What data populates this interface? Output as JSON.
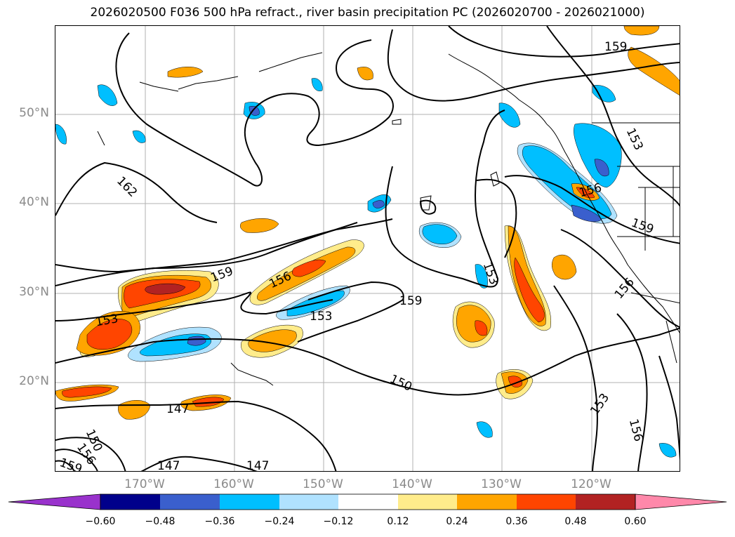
{
  "title": "2026020500 F036 500 hPa refract., river basin precipitation PC (2026020700 - 2026021000)",
  "axes": {
    "lat_labels": [
      "50°N",
      "40°N",
      "30°N",
      "20°N"
    ],
    "lon_labels": [
      "170°W",
      "160°W",
      "150°W",
      "140°W",
      "130°W",
      "120°W"
    ]
  },
  "contour_labels": [
    "159",
    "162",
    "159",
    "156",
    "153",
    "153",
    "159",
    "153",
    "150",
    "147",
    "147",
    "147",
    "150",
    "156",
    "159",
    "156",
    "159",
    "156",
    "153",
    "156"
  ],
  "colorbar": {
    "ticks": [
      "−0.60",
      "−0.48",
      "−0.36",
      "−0.24",
      "−0.12",
      "0.12",
      "0.24",
      "0.36",
      "0.48",
      "0.60"
    ],
    "colors": [
      "#9932cc",
      "#00008b",
      "#3a5fcd",
      "#00bfff",
      "#b0e2ff",
      "#ffffff",
      "#ffec8b",
      "#ffa500",
      "#ff4500",
      "#b22222",
      "#ff88aa"
    ]
  },
  "shading_colors": {
    "light_blue": "#b0e2ff",
    "blue": "#00bfff",
    "royal": "#3a5fcd",
    "yellow": "#ffec8b",
    "orange": "#ffa500",
    "red": "#ff4500",
    "dark_red": "#b22222"
  }
}
